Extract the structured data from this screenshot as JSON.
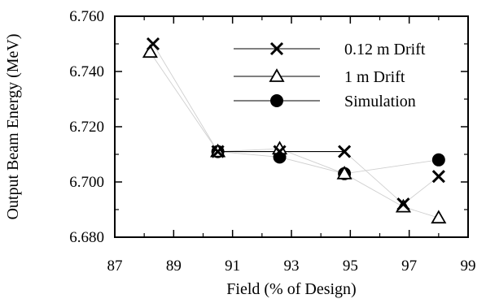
{
  "chart_data": {
    "type": "scatter",
    "title": "",
    "xlabel": "Field (% of Design)",
    "ylabel": "Output Beam Energy (MeV)",
    "xlim": [
      87,
      99
    ],
    "ylim": [
      6.68,
      6.76
    ],
    "x_ticks": [
      "87",
      "89",
      "91",
      "93",
      "95",
      "97",
      "99"
    ],
    "y_ticks": [
      "6.680",
      "6.700",
      "6.720",
      "6.740",
      "6.760"
    ],
    "grid": false,
    "legend_position": "top-right",
    "series": [
      {
        "name": "0.12 m Drift",
        "marker": "x",
        "x": [
          88.3,
          90.5,
          92.6,
          94.8,
          96.8,
          98.0
        ],
        "y": [
          6.75,
          6.711,
          6.711,
          6.711,
          6.692,
          6.702
        ]
      },
      {
        "name": "1 m Drift",
        "marker": "triangle",
        "x": [
          88.2,
          90.5,
          92.6,
          94.8,
          96.8,
          98.0
        ],
        "y": [
          6.747,
          6.711,
          6.712,
          6.703,
          6.691,
          6.687
        ]
      },
      {
        "name": "Simulation",
        "marker": "circle",
        "x": [
          90.5,
          92.6,
          94.8,
          98.0
        ],
        "y": [
          6.711,
          6.709,
          6.703,
          6.708
        ]
      }
    ],
    "annotations": [
      {
        "type": "hline",
        "y": 6.711,
        "x_from": 90.5,
        "x_to": 94.8
      }
    ]
  }
}
